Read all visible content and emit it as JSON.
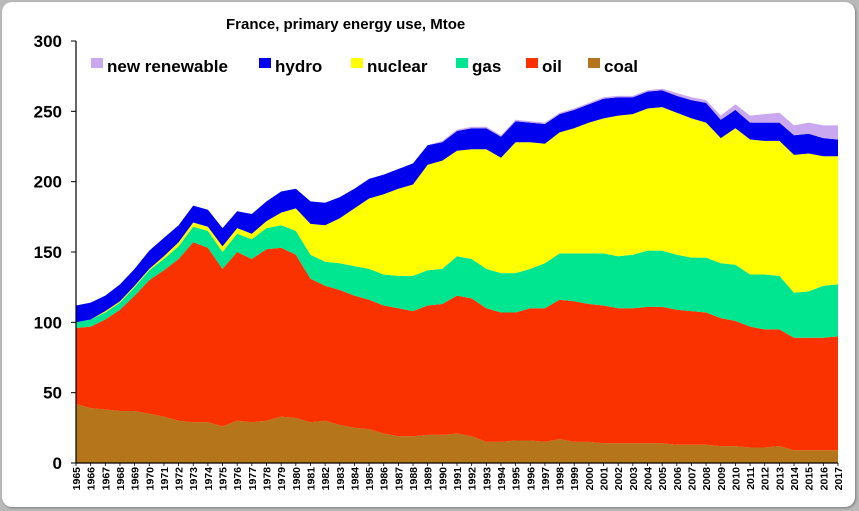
{
  "chart_data": {
    "type": "area",
    "title": "France, primary energy use, Mtoe",
    "xlabel": "",
    "ylabel": "",
    "ylim": [
      0,
      300
    ],
    "yticks": [
      0,
      50,
      100,
      150,
      200,
      250,
      300
    ],
    "grid": false,
    "legend_position": "top-left",
    "x": [
      1965,
      1966,
      1967,
      1968,
      1969,
      1970,
      1971,
      1972,
      1973,
      1974,
      1975,
      1976,
      1977,
      1978,
      1979,
      1980,
      1981,
      1982,
      1983,
      1984,
      1985,
      1986,
      1987,
      1988,
      1989,
      1990,
      1991,
      1992,
      1993,
      1994,
      1995,
      1996,
      1997,
      1998,
      1999,
      2000,
      2001,
      2002,
      2003,
      2004,
      2005,
      2006,
      2007,
      2008,
      2009,
      2010,
      2011,
      2012,
      2013,
      2014,
      2015,
      2016,
      2017
    ],
    "series": [
      {
        "name": "coal",
        "color": "#b5751a",
        "values": [
          42,
          39,
          38,
          37,
          37,
          35,
          33,
          30,
          29,
          29,
          26,
          30,
          29,
          30,
          33,
          32,
          29,
          30,
          27,
          25,
          24,
          21,
          19,
          19,
          20,
          20,
          21,
          19,
          15,
          15,
          16,
          16,
          15,
          17,
          15,
          15,
          14,
          14,
          14,
          14,
          14,
          13,
          13,
          13,
          12,
          12,
          11,
          11,
          12,
          9,
          9,
          9,
          9
        ]
      },
      {
        "name": "oil",
        "color": "#fa3200",
        "values": [
          54,
          58,
          64,
          72,
          82,
          95,
          104,
          115,
          128,
          124,
          112,
          120,
          116,
          122,
          120,
          116,
          102,
          96,
          96,
          94,
          92,
          91,
          91,
          89,
          92,
          93,
          98,
          98,
          95,
          92,
          91,
          94,
          95,
          99,
          100,
          98,
          98,
          96,
          96,
          97,
          97,
          96,
          95,
          94,
          91,
          89,
          86,
          84,
          83,
          80,
          80,
          80,
          81
        ]
      },
      {
        "name": "gas",
        "color": "#00e690",
        "values": [
          4,
          5,
          5,
          5,
          6,
          7,
          8,
          9,
          11,
          12,
          12,
          13,
          14,
          15,
          16,
          17,
          17,
          17,
          19,
          21,
          22,
          22,
          23,
          25,
          25,
          25,
          28,
          28,
          28,
          28,
          28,
          28,
          32,
          33,
          34,
          36,
          37,
          37,
          38,
          40,
          40,
          39,
          38,
          39,
          39,
          40,
          37,
          39,
          38,
          32,
          33,
          37,
          37
        ]
      },
      {
        "name": "nuclear",
        "color": "#ffff00",
        "values": [
          0,
          0,
          1,
          1,
          1,
          1,
          2,
          3,
          3,
          3,
          4,
          4,
          4,
          5,
          9,
          16,
          22,
          26,
          32,
          41,
          50,
          57,
          62,
          65,
          75,
          77,
          75,
          78,
          85,
          82,
          93,
          90,
          85,
          86,
          89,
          93,
          96,
          100,
          100,
          101,
          102,
          101,
          99,
          96,
          89,
          97,
          96,
          95,
          96,
          98,
          98,
          92,
          91
        ]
      },
      {
        "name": "hydro",
        "color": "#0000ee",
        "values": [
          12,
          12,
          11,
          12,
          12,
          13,
          13,
          12,
          12,
          12,
          13,
          12,
          14,
          14,
          15,
          14,
          16,
          16,
          15,
          14,
          14,
          14,
          14,
          15,
          14,
          13,
          14,
          15,
          15,
          15,
          15,
          14,
          14,
          13,
          13,
          13,
          14,
          13,
          12,
          12,
          12,
          12,
          13,
          14,
          13,
          13,
          12,
          13,
          13,
          14,
          14,
          13,
          12
        ]
      },
      {
        "name": "new renewable",
        "color": "#c9a8f0",
        "values": [
          0,
          0,
          0,
          0,
          0,
          0,
          0,
          0,
          0,
          0,
          0,
          0,
          0,
          0,
          0,
          0,
          0,
          0,
          0,
          0,
          0,
          0,
          0,
          0,
          0,
          1,
          1,
          1,
          1,
          1,
          1,
          1,
          1,
          1,
          1,
          1,
          1,
          1,
          1,
          1,
          1,
          2,
          2,
          2,
          3,
          4,
          5,
          6,
          7,
          7,
          8,
          9,
          10
        ]
      }
    ],
    "legend_order": [
      "new renewable",
      "hydro",
      "nuclear",
      "gas",
      "oil",
      "coal"
    ]
  }
}
